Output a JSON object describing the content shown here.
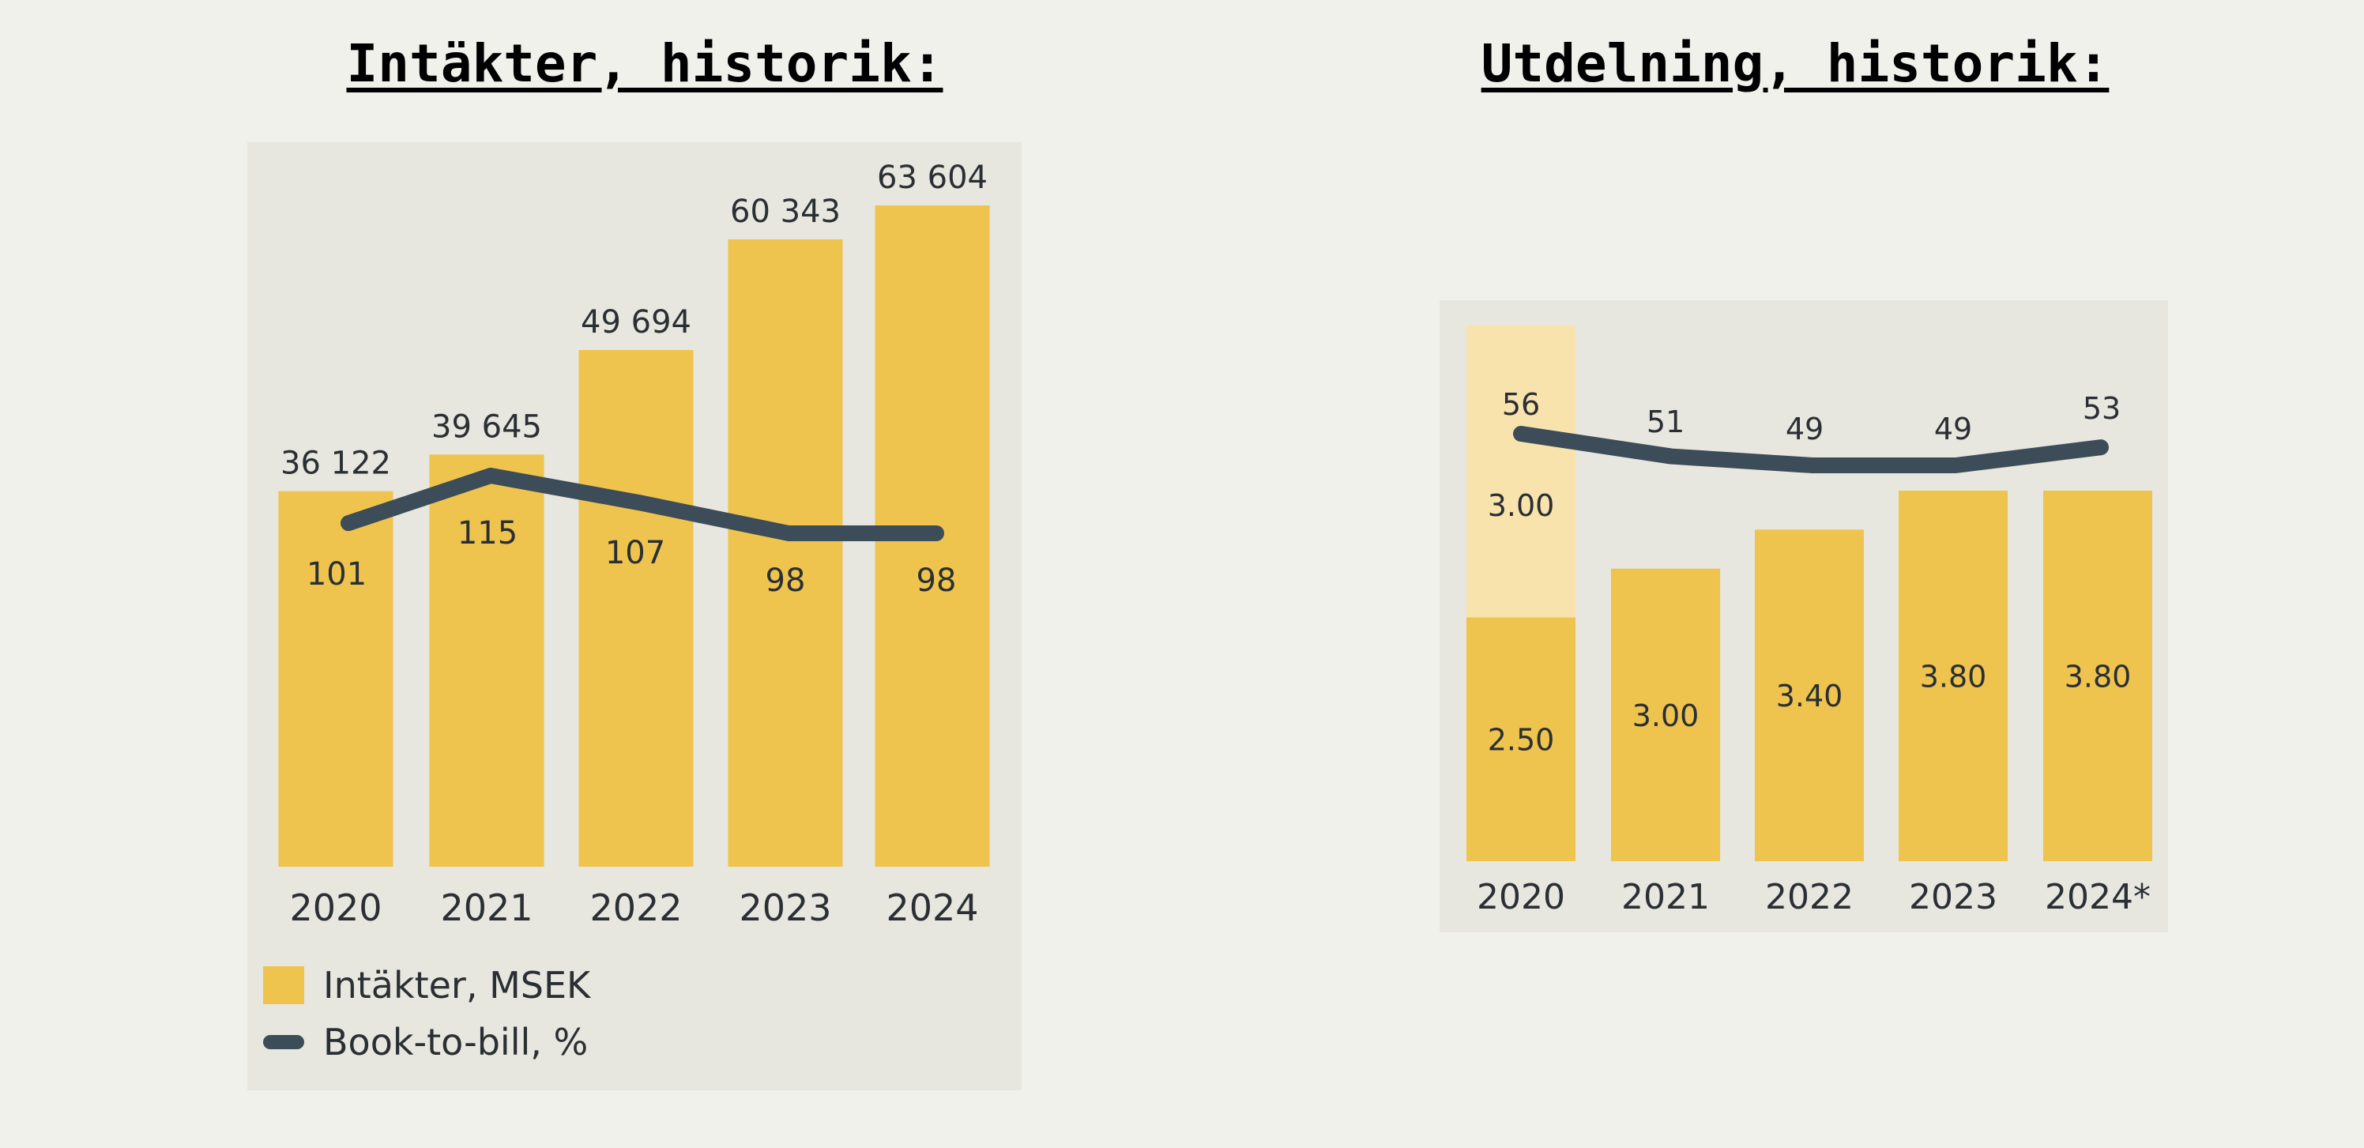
{
  "headings": {
    "revenue": "Intäkter, historik:",
    "dividend": "Utdelning, historik:"
  },
  "colors": {
    "bar": "#eec44e",
    "bar_light": "#f8e3ad",
    "line": "#3c4c58",
    "panel": "#e7e6df",
    "background": "#f1f1ec"
  },
  "chart_data": [
    {
      "type": "bar",
      "categories": [
        "2020",
        "2021",
        "2022",
        "2023",
        "2024"
      ],
      "series": [
        {
          "name": "Intäkter, MSEK",
          "type": "bar",
          "values": [
            36122,
            39645,
            49694,
            60343,
            63604
          ],
          "labels": [
            "36 122",
            "39 645",
            "49 694",
            "60 343",
            "63 604"
          ]
        },
        {
          "name": "Book-to-bill, %",
          "type": "line",
          "values": [
            101,
            115,
            107,
            98,
            98
          ],
          "labels": [
            "101",
            "115",
            "107",
            "98",
            "98"
          ]
        }
      ],
      "legend": {
        "position": "bottom-left",
        "items": [
          "Intäkter, MSEK",
          "Book-to-bill, %"
        ]
      },
      "ylim": [
        0,
        63604
      ],
      "grid": false
    },
    {
      "type": "bar",
      "stacked": true,
      "categories": [
        "2020",
        "2021",
        "2022",
        "2023",
        "2024*"
      ],
      "series": [
        {
          "type": "bar",
          "values": [
            2.5,
            3.0,
            3.4,
            3.8,
            3.8
          ],
          "labels": [
            "2.50",
            "3.00",
            "3.40",
            "3.80",
            "3.80"
          ]
        },
        {
          "type": "bar",
          "values": [
            3.0,
            null,
            null,
            null,
            null
          ],
          "labels": [
            "3.00",
            "",
            "",
            "",
            ""
          ]
        },
        {
          "type": "line",
          "values": [
            56,
            51,
            49,
            49,
            53
          ],
          "labels": [
            "56",
            "51",
            "49",
            "49",
            "53"
          ]
        }
      ],
      "grid": false
    }
  ]
}
